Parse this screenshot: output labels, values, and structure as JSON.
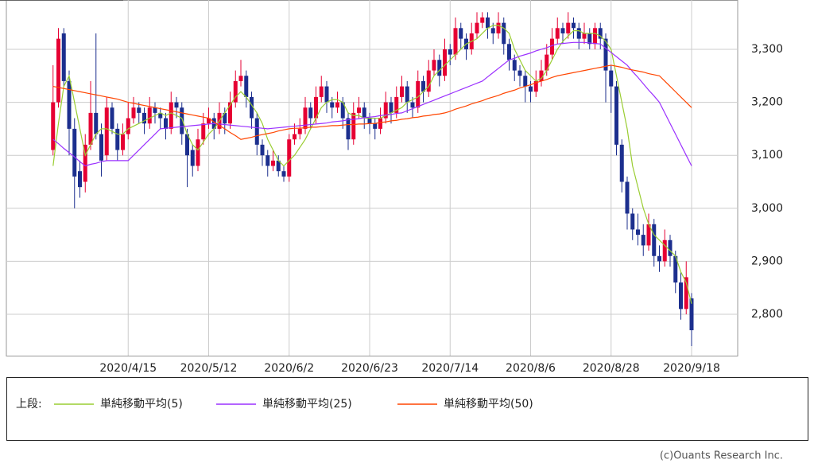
{
  "chart_data": {
    "type": "candlestick",
    "categories": [
      null,
      null,
      null,
      null,
      null,
      null,
      null,
      null,
      null,
      null,
      null,
      null,
      null,
      null,
      "2020/4/15",
      null,
      null,
      null,
      null,
      null,
      null,
      null,
      null,
      null,
      null,
      null,
      null,
      null,
      null,
      "2020/5/12",
      null,
      null,
      null,
      null,
      null,
      null,
      null,
      null,
      null,
      null,
      null,
      null,
      null,
      null,
      "2020/6/2",
      null,
      null,
      null,
      null,
      null,
      null,
      null,
      null,
      null,
      null,
      null,
      null,
      null,
      null,
      "2020/6/23",
      null,
      null,
      null,
      null,
      null,
      null,
      null,
      null,
      null,
      null,
      null,
      null,
      null,
      null,
      "2020/7/14",
      null,
      null,
      null,
      null,
      null,
      null,
      null,
      null,
      null,
      null,
      null,
      null,
      null,
      null,
      "2020/8/6",
      null,
      null,
      null,
      null,
      null,
      null,
      null,
      null,
      null,
      null,
      null,
      null,
      null,
      null,
      "2020/8/28",
      null,
      null,
      null,
      null,
      null,
      null,
      null,
      null,
      null,
      null,
      null,
      null,
      null,
      null,
      "2020/9/18"
    ],
    "open": [
      3110,
      3200,
      3330,
      3240,
      3150,
      3070,
      3050,
      3120,
      3180,
      3140,
      3100,
      3190,
      3150,
      3110,
      3140,
      3170,
      3190,
      3180,
      3160,
      3190,
      3180,
      3170,
      3150,
      3200,
      3190,
      3140,
      3110,
      3080,
      3130,
      3160,
      3170,
      3150,
      3180,
      3160,
      3200,
      3240,
      3250,
      3210,
      3170,
      3120,
      3100,
      3080,
      3090,
      3070,
      3060,
      3130,
      3140,
      3150,
      3190,
      3170,
      3210,
      3230,
      3200,
      3190,
      3200,
      3170,
      3130,
      3180,
      3190,
      3170,
      3160,
      3150,
      3170,
      3200,
      3180,
      3210,
      3230,
      3200,
      3190,
      3240,
      3220,
      3260,
      3280,
      3250,
      3300,
      3290,
      3340,
      3320,
      3300,
      3330,
      3350,
      3360,
      3340,
      3330,
      3350,
      3310,
      3280,
      3260,
      3250,
      3230,
      3220,
      3240,
      3260,
      3290,
      3320,
      3340,
      3330,
      3350,
      3340,
      3320,
      3330,
      3310,
      3340,
      3320,
      3260,
      3230,
      3120,
      3050,
      2990,
      2960,
      2950,
      2930,
      2970,
      2910,
      2900,
      2940,
      2910,
      2860,
      2810,
      2830
    ],
    "high": [
      3270,
      3340,
      3340,
      3260,
      3170,
      3090,
      3140,
      3240,
      3330,
      3160,
      3210,
      3200,
      3160,
      3160,
      3200,
      3210,
      3200,
      3190,
      3210,
      3200,
      3190,
      3180,
      3220,
      3210,
      3200,
      3150,
      3120,
      3150,
      3180,
      3190,
      3180,
      3200,
      3190,
      3220,
      3260,
      3280,
      3260,
      3220,
      3180,
      3130,
      3110,
      3110,
      3100,
      3080,
      3140,
      3160,
      3170,
      3210,
      3200,
      3230,
      3250,
      3240,
      3210,
      3220,
      3210,
      3180,
      3200,
      3210,
      3200,
      3180,
      3170,
      3190,
      3220,
      3210,
      3230,
      3250,
      3240,
      3210,
      3260,
      3250,
      3280,
      3300,
      3290,
      3320,
      3310,
      3360,
      3350,
      3330,
      3350,
      3370,
      3370,
      3370,
      3350,
      3370,
      3360,
      3320,
      3290,
      3270,
      3260,
      3240,
      3260,
      3280,
      3310,
      3340,
      3360,
      3350,
      3370,
      3360,
      3350,
      3350,
      3340,
      3350,
      3350,
      3330,
      3270,
      3240,
      3130,
      3060,
      3000,
      2990,
      2970,
      2990,
      2980,
      2930,
      2960,
      2950,
      2920,
      2880,
      2900,
      2840
    ],
    "low": [
      3100,
      3190,
      3230,
      3100,
      3000,
      3020,
      3030,
      3110,
      3130,
      3060,
      3090,
      3140,
      3090,
      3100,
      3130,
      3160,
      3160,
      3140,
      3150,
      3160,
      3150,
      3130,
      3140,
      3170,
      3120,
      3040,
      3060,
      3070,
      3120,
      3150,
      3130,
      3140,
      3140,
      3150,
      3190,
      3230,
      3190,
      3150,
      3100,
      3080,
      3060,
      3070,
      3060,
      3050,
      3050,
      3120,
      3130,
      3140,
      3150,
      3160,
      3200,
      3180,
      3170,
      3180,
      3150,
      3110,
      3120,
      3170,
      3150,
      3140,
      3130,
      3140,
      3160,
      3160,
      3170,
      3200,
      3180,
      3170,
      3180,
      3200,
      3210,
      3250,
      3230,
      3240,
      3270,
      3280,
      3300,
      3280,
      3290,
      3320,
      3340,
      3320,
      3310,
      3320,
      3290,
      3260,
      3240,
      3230,
      3200,
      3200,
      3210,
      3230,
      3250,
      3280,
      3310,
      3310,
      3320,
      3320,
      3300,
      3310,
      3300,
      3300,
      3300,
      3200,
      3180,
      3100,
      3030,
      2960,
      2940,
      2930,
      2910,
      2920,
      2890,
      2880,
      2890,
      2890,
      2840,
      2790,
      2800,
      2740
    ],
    "close": [
      3200,
      3320,
      3240,
      3150,
      3060,
      3040,
      3120,
      3180,
      3140,
      3090,
      3190,
      3150,
      3110,
      3140,
      3170,
      3190,
      3180,
      3160,
      3190,
      3180,
      3170,
      3150,
      3200,
      3190,
      3140,
      3100,
      3080,
      3130,
      3160,
      3170,
      3150,
      3180,
      3160,
      3200,
      3240,
      3250,
      3210,
      3170,
      3120,
      3100,
      3080,
      3090,
      3070,
      3060,
      3130,
      3140,
      3150,
      3190,
      3170,
      3210,
      3230,
      3200,
      3190,
      3200,
      3170,
      3130,
      3180,
      3190,
      3170,
      3160,
      3150,
      3170,
      3200,
      3180,
      3210,
      3230,
      3200,
      3190,
      3240,
      3220,
      3260,
      3280,
      3250,
      3300,
      3290,
      3340,
      3320,
      3300,
      3330,
      3350,
      3360,
      3340,
      3330,
      3350,
      3310,
      3280,
      3260,
      3250,
      3230,
      3220,
      3240,
      3260,
      3290,
      3320,
      3340,
      3330,
      3350,
      3340,
      3320,
      3330,
      3310,
      3340,
      3320,
      3260,
      3230,
      3120,
      3050,
      2990,
      2960,
      2950,
      2930,
      2970,
      2910,
      2900,
      2940,
      2910,
      2860,
      2810,
      2870,
      2770
    ],
    "up_color": "#e60033",
    "down_color": "#1c2f8e",
    "moving_averages": [
      {
        "name": "単純移動平均(5)",
        "color": "#9acd32",
        "values": [
          3080,
          3160,
          3230,
          3250,
          3200,
          3150,
          3100,
          3120,
          3140,
          3150,
          3150,
          3145,
          3140,
          3140,
          3150,
          3155,
          3160,
          3165,
          3170,
          3175,
          3180,
          3175,
          3180,
          3175,
          3170,
          3140,
          3120,
          3110,
          3125,
          3140,
          3150,
          3165,
          3180,
          3195,
          3210,
          3220,
          3210,
          3195,
          3180,
          3160,
          3130,
          3110,
          3090,
          3080,
          3090,
          3100,
          3115,
          3130,
          3150,
          3170,
          3190,
          3200,
          3205,
          3205,
          3200,
          3180,
          3175,
          3175,
          3170,
          3170,
          3170,
          3170,
          3175,
          3180,
          3185,
          3190,
          3200,
          3205,
          3210,
          3220,
          3230,
          3250,
          3260,
          3270,
          3280,
          3290,
          3300,
          3310,
          3315,
          3320,
          3330,
          3340,
          3345,
          3345,
          3340,
          3330,
          3300,
          3280,
          3260,
          3250,
          3240,
          3245,
          3260,
          3280,
          3300,
          3315,
          3325,
          3335,
          3335,
          3330,
          3330,
          3330,
          3325,
          3315,
          3300,
          3250,
          3200,
          3150,
          3080,
          3040,
          3000,
          2970,
          2950,
          2940,
          2930,
          2920,
          2910,
          2880,
          2860,
          2820
        ]
      },
      {
        "name": "単純移動平均(25)",
        "color": "#9b30ff",
        "values": [
          3130,
          3122,
          3113,
          3105,
          3097,
          3088,
          3080,
          3083,
          3085,
          3088,
          3090,
          3090,
          3090,
          3090,
          3090,
          3100,
          3110,
          3120,
          3130,
          3140,
          3150,
          3151,
          3152,
          3153,
          3154,
          3155,
          3156,
          3157,
          3158,
          3159,
          3160,
          3159,
          3158,
          3157,
          3156,
          3155,
          3154,
          3153,
          3152,
          3151,
          3150,
          3151,
          3152,
          3153,
          3154,
          3155,
          3156,
          3157,
          3158,
          3159,
          3160,
          3161,
          3163,
          3164,
          3165,
          3167,
          3168,
          3169,
          3171,
          3172,
          3173,
          3175,
          3176,
          3177,
          3179,
          3180,
          3184,
          3188,
          3192,
          3196,
          3200,
          3204,
          3208,
          3212,
          3216,
          3220,
          3224,
          3228,
          3232,
          3236,
          3240,
          3248,
          3256,
          3264,
          3272,
          3280,
          3283,
          3287,
          3290,
          3293,
          3297,
          3300,
          3303,
          3307,
          3310,
          3311,
          3312,
          3313,
          3313,
          3313,
          3312,
          3311,
          3310,
          3302,
          3294,
          3286,
          3278,
          3270,
          3258,
          3247,
          3235,
          3223,
          3212,
          3200,
          3180,
          3160,
          3140,
          3120,
          3100,
          3080
        ]
      },
      {
        "name": "単純移動平均(50)",
        "color": "#ff4500",
        "values": [
          3230,
          3228,
          3226,
          3224,
          3222,
          3220,
          3218,
          3216,
          3214,
          3212,
          3210,
          3208,
          3206,
          3203,
          3200,
          3198,
          3196,
          3194,
          3192,
          3190,
          3188,
          3186,
          3184,
          3182,
          3180,
          3178,
          3176,
          3174,
          3172,
          3170,
          3163,
          3156,
          3150,
          3143,
          3137,
          3130,
          3132,
          3134,
          3137,
          3139,
          3141,
          3143,
          3146,
          3148,
          3150,
          3151,
          3151,
          3152,
          3153,
          3153,
          3154,
          3155,
          3156,
          3156,
          3157,
          3158,
          3158,
          3159,
          3159,
          3160,
          3160,
          3162,
          3163,
          3165,
          3166,
          3168,
          3169,
          3171,
          3172,
          3174,
          3175,
          3177,
          3178,
          3180,
          3183,
          3187,
          3190,
          3193,
          3197,
          3200,
          3203,
          3207,
          3210,
          3213,
          3217,
          3220,
          3223,
          3227,
          3230,
          3233,
          3237,
          3240,
          3243,
          3247,
          3250,
          3252,
          3254,
          3256,
          3258,
          3260,
          3262,
          3264,
          3266,
          3268,
          3270,
          3268,
          3266,
          3263,
          3261,
          3259,
          3257,
          3254,
          3252,
          3250,
          3240,
          3230,
          3220,
          3210,
          3200,
          3190
        ]
      }
    ],
    "legend_label": "上段:",
    "ylim": [
      2722,
      3393
    ],
    "yticks": [
      {
        "value": 2800,
        "label": "2,800"
      },
      {
        "value": 2900,
        "label": "2,900"
      },
      {
        "value": 3000,
        "label": "3,000"
      },
      {
        "value": 3100,
        "label": "3,100"
      },
      {
        "value": 3200,
        "label": "3,200"
      },
      {
        "value": 3300,
        "label": "3,300"
      }
    ],
    "grid": true
  },
  "credit": "(c)Ouants Research Inc."
}
